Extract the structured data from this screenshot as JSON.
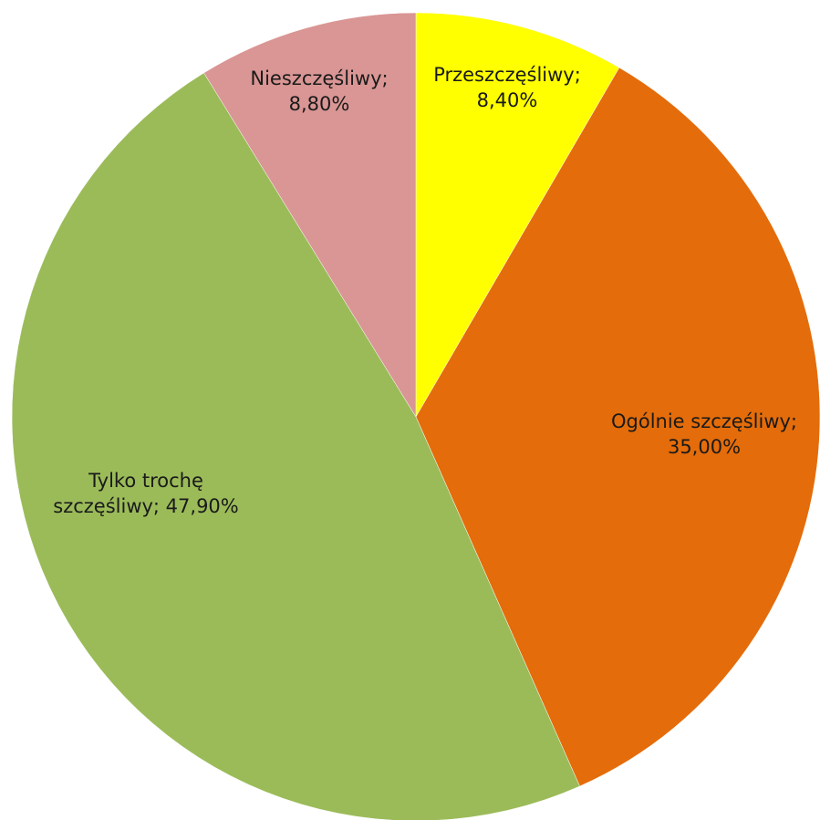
{
  "chart_data": {
    "type": "pie",
    "start_angle_deg": 0,
    "direction": "clockwise",
    "slices": [
      {
        "label": "Przeszczęśliwy",
        "value": 8.4,
        "value_text": "8,40%",
        "color": "#FFFF00"
      },
      {
        "label": "Ogólnie szczęśliwy",
        "value": 35.0,
        "value_text": "35,00%",
        "color": "#E46C0A"
      },
      {
        "label": "Tylko trochę szczęśliwy",
        "value": 47.9,
        "value_text": "47,90%",
        "color": "#9BBB59"
      },
      {
        "label": "Nieszczęśliwy",
        "value": 8.8,
        "value_text": "8,80%",
        "color": "#D99694"
      }
    ],
    "data_labels": [
      {
        "lines": [
          "Przeszczęśliwy;",
          "8,40%"
        ]
      },
      {
        "lines": [
          "Ogólnie szczęśliwy;",
          "35,00%"
        ]
      },
      {
        "lines": [
          "Tylko trochę",
          "szczęśliwy; 47,90%"
        ]
      },
      {
        "lines": [
          "Nieszczęśliwy;",
          "8,80%"
        ]
      }
    ]
  }
}
